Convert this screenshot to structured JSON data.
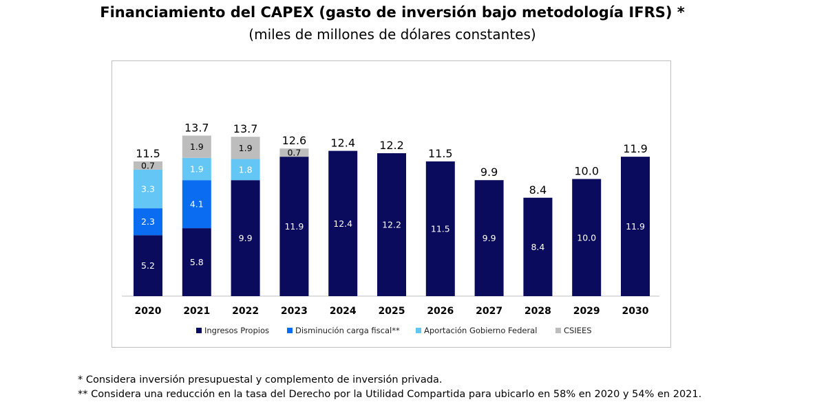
{
  "title": "Financiamiento del CAPEX (gasto de inversión bajo metodología IFRS) *",
  "subtitle": "(miles de millones de dólares constantes)",
  "footnotes": [
    "* Considera inversión presupuestal y complemento de inversión privada.",
    "** Considera una reducción en la tasa del Derecho por la Utilidad Compartida para ubicarlo en 58% en 2020 y 54% en 2021."
  ],
  "chart_data": {
    "type": "bar",
    "stacked": true,
    "title": "Financiamiento del CAPEX (gasto de inversión bajo metodología IFRS) *",
    "subtitle": "(miles de millones de dólares constantes)",
    "categories": [
      "2020",
      "2021",
      "2022",
      "2023",
      "2024",
      "2025",
      "2026",
      "2027",
      "2028",
      "2029",
      "2030"
    ],
    "series": [
      {
        "name": "Ingresos Propios",
        "color": "#0b0b5e",
        "values": [
          5.2,
          5.8,
          9.9,
          11.9,
          12.4,
          12.2,
          11.5,
          9.9,
          8.4,
          10.0,
          11.9
        ],
        "labels": [
          "5.2",
          "5.8",
          "9.9",
          "11.9",
          "12.4",
          "12.2",
          "11.5",
          "9.9",
          "8.4",
          "10.0",
          "11.9"
        ]
      },
      {
        "name": "Disminución carga fiscal**",
        "color": "#0a6cf0",
        "values": [
          2.3,
          4.1,
          0,
          0,
          0,
          0,
          0,
          0,
          0,
          0,
          0
        ],
        "labels": [
          "2.3",
          "4.1",
          "",
          "",
          "",
          "",
          "",
          "",
          "",
          "",
          ""
        ]
      },
      {
        "name": "Aportación Gobierno Federal",
        "color": "#63c6f5",
        "values": [
          3.3,
          1.9,
          1.8,
          0,
          0,
          0,
          0,
          0,
          0,
          0,
          0
        ],
        "labels": [
          "3.3",
          "1.9",
          "1.8",
          "",
          "",
          "",
          "",
          "",
          "",
          "",
          ""
        ]
      },
      {
        "name": "CSIEES",
        "color": "#bdbdbd",
        "values": [
          0.7,
          1.9,
          1.9,
          0.7,
          0,
          0,
          0,
          0,
          0,
          0,
          0
        ],
        "labels": [
          "0.7",
          "1.9",
          "1.9",
          "0.7",
          "",
          "",
          "",
          "",
          "",
          "",
          ""
        ]
      }
    ],
    "totals": [
      "11.5",
      "13.7",
      "13.7",
      "12.6",
      "12.4",
      "12.2",
      "11.5",
      "9.9",
      "8.4",
      "10.0",
      "11.9"
    ],
    "ylim": [
      0,
      14.4
    ],
    "grid": false,
    "legend_position": "bottom",
    "xlabel": "",
    "ylabel": ""
  }
}
